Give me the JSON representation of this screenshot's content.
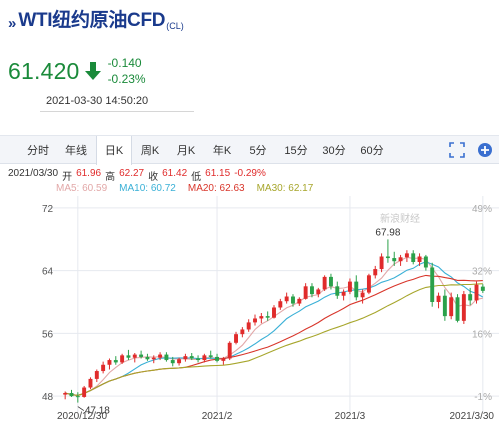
{
  "header": {
    "chevron": "»",
    "title": "WTI纽约原油CFD",
    "subtitle": "(CL)"
  },
  "quote": {
    "price": "61.420",
    "change": "-0.140",
    "change_pct": "-0.23%",
    "timestamp": "2021-03-30 14:50:20",
    "color": "#1a8a3a"
  },
  "tabs": [
    {
      "label": "分时",
      "active": false
    },
    {
      "label": "年线",
      "active": false
    },
    {
      "label": "日K",
      "active": true
    },
    {
      "label": "周K",
      "active": false
    },
    {
      "label": "月K",
      "active": false
    },
    {
      "label": "年K",
      "active": false
    },
    {
      "label": "5分",
      "active": false
    },
    {
      "label": "15分",
      "active": false
    },
    {
      "label": "30分",
      "active": false
    },
    {
      "label": "60分",
      "active": false
    }
  ],
  "tab_icons": [
    "fullscreen-icon",
    "add-icon"
  ],
  "ohlc": {
    "date": "2021/03/30",
    "open_label": "开",
    "open": "61.96",
    "high_label": "高",
    "high": "62.27",
    "close_label": "收",
    "close": "61.42",
    "low_label": "低",
    "low": "61.15",
    "pct": "-0.29%"
  },
  "ma": [
    {
      "label": "MA5: 60.59",
      "color": "#e2a8a8"
    },
    {
      "label": "MA10: 60.72",
      "color": "#3ab0d6"
    },
    {
      "label": "MA20: 62.63",
      "color": "#d8352a"
    },
    {
      "label": "MA30: 62.17",
      "color": "#a7a62c"
    }
  ],
  "chart_data": {
    "type": "candlestick",
    "y_ticks_left": [
      "72",
      "64",
      "56",
      "48"
    ],
    "y_ticks_right": [
      "49%",
      "32%",
      "16%",
      "-1%"
    ],
    "x_ticks": [
      "2020/12/30",
      "2021/2",
      "2021/3",
      "2021/3/30"
    ],
    "ylim": [
      47,
      73
    ],
    "annotations": [
      {
        "label": "67.98",
        "value": 67.98
      },
      {
        "label": "47.18",
        "value": 47.18
      }
    ],
    "watermark": "新浪财经",
    "candles": [
      [
        48.2,
        48.6,
        47.6,
        48.4
      ],
      [
        48.4,
        48.8,
        47.9,
        48.0
      ],
      [
        48.0,
        48.5,
        47.18,
        47.9
      ],
      [
        47.9,
        49.3,
        47.8,
        49.1
      ],
      [
        49.1,
        50.4,
        48.9,
        50.2
      ],
      [
        50.2,
        51.4,
        49.8,
        51.2
      ],
      [
        51.2,
        52.4,
        50.9,
        52.0
      ],
      [
        52.0,
        52.8,
        51.4,
        52.6
      ],
      [
        52.6,
        53.1,
        52.0,
        52.3
      ],
      [
        52.3,
        53.4,
        52.1,
        53.2
      ],
      [
        53.2,
        53.9,
        52.6,
        52.9
      ],
      [
        52.9,
        53.5,
        52.3,
        53.3
      ],
      [
        53.3,
        53.8,
        52.8,
        53.0
      ],
      [
        53.0,
        53.4,
        52.5,
        52.7
      ],
      [
        52.7,
        53.2,
        52.2,
        52.9
      ],
      [
        52.9,
        53.6,
        52.6,
        53.3
      ],
      [
        53.3,
        53.6,
        52.4,
        52.6
      ],
      [
        52.6,
        53.0,
        51.8,
        52.2
      ],
      [
        52.2,
        52.9,
        51.9,
        52.7
      ],
      [
        52.7,
        53.4,
        52.4,
        53.1
      ],
      [
        53.1,
        53.5,
        52.6,
        52.8
      ],
      [
        52.8,
        53.2,
        52.3,
        52.6
      ],
      [
        52.6,
        53.4,
        52.3,
        53.2
      ],
      [
        53.2,
        53.8,
        52.8,
        53.0
      ],
      [
        53.0,
        53.4,
        52.3,
        52.5
      ],
      [
        52.5,
        53.0,
        52.0,
        52.8
      ],
      [
        52.8,
        55.0,
        52.6,
        54.8
      ],
      [
        54.8,
        56.2,
        54.6,
        55.9
      ],
      [
        55.9,
        56.8,
        55.5,
        56.5
      ],
      [
        56.5,
        57.8,
        56.2,
        57.4
      ],
      [
        57.4,
        58.4,
        57.0,
        57.9
      ],
      [
        57.9,
        58.6,
        57.3,
        58.2
      ],
      [
        58.2,
        58.8,
        57.6,
        58.0
      ],
      [
        58.0,
        59.6,
        57.9,
        59.3
      ],
      [
        59.3,
        60.4,
        59.0,
        60.1
      ],
      [
        60.1,
        61.2,
        59.8,
        60.7
      ],
      [
        60.7,
        61.0,
        59.4,
        59.8
      ],
      [
        59.8,
        60.6,
        59.5,
        60.4
      ],
      [
        60.4,
        62.4,
        60.3,
        62.0
      ],
      [
        62.0,
        62.4,
        60.6,
        61.0
      ],
      [
        61.0,
        61.8,
        60.6,
        61.6
      ],
      [
        61.6,
        63.4,
        61.4,
        63.2
      ],
      [
        63.2,
        63.6,
        61.6,
        62.0
      ],
      [
        62.0,
        62.6,
        60.4,
        60.8
      ],
      [
        60.8,
        61.6,
        60.2,
        61.3
      ],
      [
        61.3,
        63.0,
        61.0,
        62.6
      ],
      [
        62.6,
        63.4,
        60.2,
        60.6
      ],
      [
        60.6,
        61.6,
        59.8,
        61.2
      ],
      [
        61.2,
        63.6,
        61.0,
        63.4
      ],
      [
        63.4,
        64.6,
        63.0,
        64.2
      ],
      [
        64.2,
        66.2,
        63.8,
        65.8
      ],
      [
        65.8,
        67.98,
        65.0,
        65.6
      ],
      [
        65.6,
        66.4,
        64.6,
        65.2
      ],
      [
        65.2,
        66.0,
        64.6,
        65.7
      ],
      [
        65.7,
        66.6,
        65.1,
        66.2
      ],
      [
        66.2,
        66.6,
        64.8,
        65.1
      ],
      [
        65.1,
        66.2,
        64.6,
        65.8
      ],
      [
        65.8,
        66.0,
        64.0,
        64.4
      ],
      [
        64.4,
        65.0,
        59.4,
        60.0
      ],
      [
        60.0,
        61.2,
        59.2,
        60.8
      ],
      [
        60.8,
        61.6,
        57.6,
        58.2
      ],
      [
        58.2,
        61.2,
        57.8,
        60.6
      ],
      [
        60.6,
        61.0,
        57.4,
        57.6
      ],
      [
        57.6,
        61.4,
        57.2,
        61.0
      ],
      [
        61.0,
        61.8,
        59.6,
        60.2
      ],
      [
        60.2,
        62.6,
        59.8,
        62.2
      ],
      [
        61.96,
        62.27,
        61.15,
        61.42
      ]
    ]
  }
}
